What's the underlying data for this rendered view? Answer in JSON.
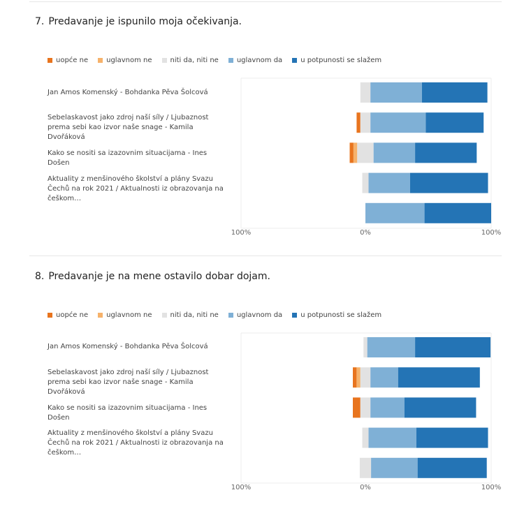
{
  "legend_colors": {
    "uopce_ne": "#e8741e",
    "uglavnom_ne": "#f6b26b",
    "niti": "#e2e2e2",
    "uglavnom_da": "#7fb0d6",
    "potpuno": "#2474b5"
  },
  "questions": [
    {
      "number": "7.",
      "title": "Predavanje je ispunilo moja očekivanja.",
      "legend": [
        "uopće ne",
        "uglavnom ne",
        "niti da, niti ne",
        "uglavnom da",
        "u potpunosti se slažem"
      ],
      "rows": [
        "Jan Amos Komenský - Bohdanka Pěva Šolcová",
        "Sebelaskavost jako zdroj naší síly / Ljubaznost prema sebi kao izvor naše snage - Kamila Dvořáková",
        "Kako se nositi sa izazovnim situacijama - Ines Došen",
        "Aktuality z menšinového školství a plány Svazu Čechů na rok 2021 / Aktualnosti iz obrazovanja na češkom…",
        ""
      ],
      "axis_ticks": [
        "100%",
        "0%",
        "100%"
      ]
    },
    {
      "number": "8.",
      "title": "Predavanje je na mene ostavilo dobar dojam.",
      "legend": [
        "uopće ne",
        "uglavnom ne",
        "niti da, niti ne",
        "uglavnom da",
        "u potpunosti se slažem"
      ],
      "rows": [
        "Jan Amos Komenský - Bohdanka Pěva Šolcová",
        "Sebelaskavost jako zdroj naší síly / Ljubaznost prema sebi kao izvor naše snage - Kamila Dvořáková",
        "Kako se nositi sa izazovnim situacijama - Ines Došen",
        "Aktuality z menšinového školství a plány Svazu Čechů na rok 2021 / Aktualnosti iz obrazovanja na češkom…",
        ""
      ],
      "axis_ticks": [
        "100%",
        "0%",
        "100%"
      ]
    }
  ],
  "chart_data": [
    {
      "type": "bar",
      "title": "Predavanje je ispunilo moja očekivanja.",
      "stacking": "diverging",
      "xlim": [
        -100,
        100
      ],
      "categories": [
        "Jan Amos Komenský - Bohdanka Pěva Šolcová",
        "Sebelaskavost jako zdroj naší síly / Ljubaznost prema sebi kao izvor naše snage - Kamila Dvořáková",
        "Kako se nositi sa izazovnim situacijama - Ines Došen",
        "Aktuality z menšinového školství a plány Svazu Čechů na rok 2021 / Aktualnosti iz obrazovanja na češkom…",
        ""
      ],
      "series": [
        {
          "name": "uopće ne",
          "values": [
            0,
            3,
            3,
            0,
            0
          ]
        },
        {
          "name": "uglavnom ne",
          "values": [
            0,
            0,
            3,
            0,
            0
          ]
        },
        {
          "name": "niti da, niti ne",
          "values": [
            8,
            8,
            13,
            5,
            0
          ]
        },
        {
          "name": "uglavnom da",
          "values": [
            41,
            44,
            33,
            33,
            47
          ]
        },
        {
          "name": "u potpunosti se slažem",
          "values": [
            52,
            46,
            49,
            62,
            53
          ]
        }
      ]
    },
    {
      "type": "bar",
      "title": "Predavanje je na mene ostavilo dobar dojam.",
      "stacking": "diverging",
      "xlim": [
        -100,
        100
      ],
      "categories": [
        "Jan Amos Komenský - Bohdanka Pěva Šolcová",
        "Sebelaskavost jako zdroj naší síly / Ljubaznost prema sebi kao izvor naše snage - Kamila Dvořáková",
        "Kako se nositi sa izazovnim situacijama - Ines Došen",
        "Aktuality z menšinového školství a plány Svazu Čechů na rok 2021 / Aktualnosti iz obrazovanja na češkom…",
        ""
      ],
      "series": [
        {
          "name": "uopće ne",
          "values": [
            0,
            3,
            6,
            0,
            0
          ]
        },
        {
          "name": "uglavnom ne",
          "values": [
            0,
            3,
            0,
            0,
            0
          ]
        },
        {
          "name": "niti da, niti ne",
          "values": [
            3,
            8,
            8,
            5,
            9
          ]
        },
        {
          "name": "uglavnom da",
          "values": [
            38,
            22,
            27,
            38,
            37
          ]
        },
        {
          "name": "u potpunosti se slažem",
          "values": [
            60,
            65,
            57,
            57,
            55
          ]
        }
      ]
    }
  ]
}
